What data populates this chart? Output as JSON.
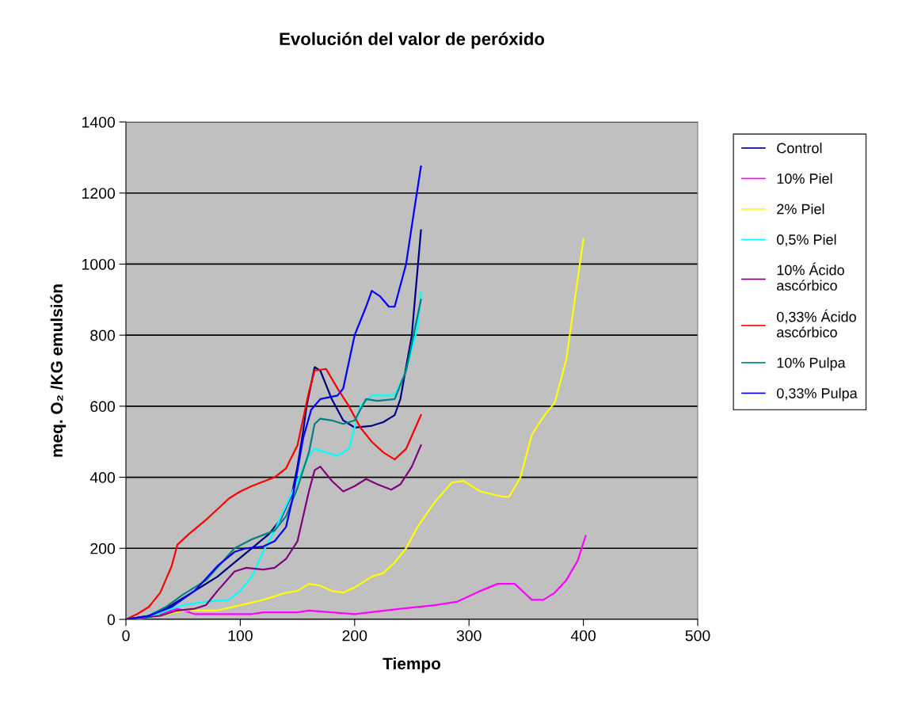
{
  "chart_data": {
    "type": "line",
    "title": "Evolución del valor de peróxido",
    "xlabel": "Tiempo",
    "ylabel": "meq. O₂ /KG emulsión",
    "xlim": [
      0,
      500
    ],
    "xticks": [
      0,
      100,
      200,
      300,
      400,
      500
    ],
    "ylim": [
      0,
      1400
    ],
    "yticks": [
      0,
      200,
      400,
      600,
      800,
      1000,
      1200,
      1400
    ],
    "grid": "y",
    "legend": "right",
    "marker": "none",
    "line_style": "solid",
    "series": [
      {
        "name": "Control",
        "color": "#000080",
        "x": [
          0,
          20,
          40,
          60,
          80,
          95,
          110,
          125,
          135,
          145,
          150,
          155,
          158,
          165,
          170,
          180,
          190,
          200,
          215,
          225,
          235,
          240,
          250,
          258
        ],
        "values": [
          0,
          10,
          40,
          80,
          120,
          160,
          200,
          240,
          280,
          350,
          430,
          530,
          600,
          710,
          700,
          620,
          560,
          540,
          545,
          555,
          575,
          620,
          800,
          1095
        ]
      },
      {
        "name": "10% Piel",
        "color": "#ff00ff",
        "x": [
          0,
          30,
          45,
          60,
          80,
          90,
          110,
          120,
          150,
          160,
          180,
          200,
          240,
          270,
          290,
          310,
          325,
          340,
          355,
          365,
          375,
          385,
          395,
          402
        ],
        "values": [
          0,
          15,
          30,
          15,
          15,
          15,
          15,
          20,
          20,
          25,
          20,
          15,
          30,
          40,
          50,
          80,
          100,
          100,
          55,
          55,
          75,
          110,
          165,
          235
        ]
      },
      {
        "name": "2% Piel",
        "color": "#ffff00",
        "x": [
          0,
          30,
          50,
          80,
          100,
          120,
          140,
          150,
          160,
          170,
          180,
          190,
          200,
          215,
          225,
          235,
          245,
          255,
          270,
          285,
          295,
          310,
          330,
          335,
          345,
          355,
          365,
          375,
          385,
          400
        ],
        "values": [
          0,
          10,
          25,
          25,
          40,
          55,
          75,
          80,
          100,
          95,
          80,
          75,
          90,
          120,
          130,
          160,
          200,
          260,
          330,
          385,
          390,
          360,
          345,
          345,
          400,
          520,
          570,
          610,
          730,
          1070
        ]
      },
      {
        "name": "0,5% Piel",
        "color": "#00ffff",
        "x": [
          0,
          20,
          40,
          50,
          70,
          90,
          100,
          110,
          120,
          130,
          140,
          150,
          160,
          165,
          175,
          185,
          195,
          205,
          215,
          235,
          245,
          255,
          258
        ],
        "values": [
          0,
          5,
          30,
          40,
          50,
          55,
          80,
          120,
          190,
          250,
          320,
          390,
          460,
          480,
          470,
          460,
          480,
          600,
          630,
          630,
          700,
          820,
          920
        ]
      },
      {
        "name": "10% Ácido ascórbico",
        "color": "#800080",
        "x": [
          0,
          30,
          45,
          60,
          70,
          80,
          95,
          105,
          120,
          130,
          140,
          150,
          160,
          165,
          170,
          180,
          190,
          200,
          210,
          220,
          232,
          240,
          250,
          258
        ],
        "values": [
          0,
          10,
          25,
          30,
          40,
          80,
          135,
          145,
          140,
          145,
          170,
          220,
          360,
          420,
          430,
          390,
          360,
          375,
          395,
          380,
          365,
          380,
          430,
          490
        ]
      },
      {
        "name": "0,33% Ácido ascórbico",
        "color": "#ff0000",
        "x": [
          0,
          10,
          20,
          30,
          40,
          45,
          55,
          70,
          80,
          90,
          100,
          110,
          130,
          140,
          150,
          160,
          165,
          175,
          185,
          195,
          205,
          215,
          225,
          235,
          245,
          258
        ],
        "values": [
          0,
          15,
          35,
          75,
          150,
          210,
          240,
          280,
          310,
          340,
          360,
          375,
          400,
          425,
          490,
          640,
          700,
          705,
          650,
          600,
          540,
          500,
          470,
          450,
          480,
          575
        ]
      },
      {
        "name": "10% Pulpa",
        "color": "#008080",
        "x": [
          0,
          20,
          35,
          50,
          70,
          95,
          110,
          130,
          140,
          150,
          160,
          165,
          170,
          180,
          190,
          200,
          210,
          220,
          235,
          245,
          258
        ],
        "values": [
          0,
          10,
          35,
          70,
          110,
          200,
          225,
          250,
          290,
          370,
          470,
          550,
          565,
          560,
          550,
          560,
          620,
          615,
          620,
          700,
          900
        ]
      },
      {
        "name": "0,33% Pulpa",
        "color": "#0000ff",
        "x": [
          0,
          20,
          40,
          60,
          80,
          95,
          105,
          120,
          130,
          140,
          145,
          150,
          155,
          162,
          170,
          185,
          190,
          200,
          210,
          215,
          222,
          230,
          235,
          245,
          252,
          258
        ],
        "values": [
          0,
          10,
          35,
          80,
          150,
          190,
          200,
          205,
          220,
          260,
          330,
          420,
          510,
          590,
          620,
          630,
          650,
          800,
          880,
          925,
          910,
          880,
          880,
          1000,
          1150,
          1275
        ]
      }
    ]
  }
}
